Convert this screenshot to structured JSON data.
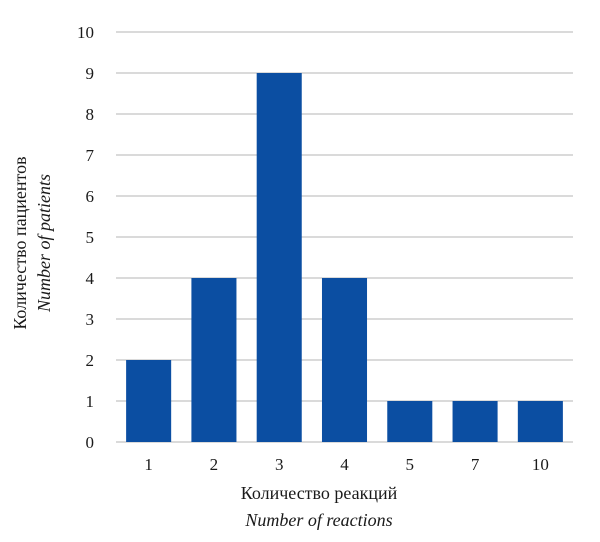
{
  "chart_data": {
    "type": "bar",
    "categories": [
      "1",
      "2",
      "3",
      "4",
      "5",
      "7",
      "10"
    ],
    "values": [
      2,
      4,
      9,
      4,
      1,
      1,
      1
    ],
    "title": "",
    "xlabel": "Количество реакций",
    "xlabel_en": "Number of reactions",
    "ylabel": "Количество пациентов",
    "ylabel_en": "Number of patients",
    "ylim": [
      0,
      10
    ],
    "yticks": [
      0,
      1,
      2,
      3,
      4,
      5,
      6,
      7,
      8,
      9,
      10
    ],
    "grid": true,
    "legend": "none",
    "bar_color": "#0b4ea2",
    "grid_color": "#b5b5b5"
  }
}
